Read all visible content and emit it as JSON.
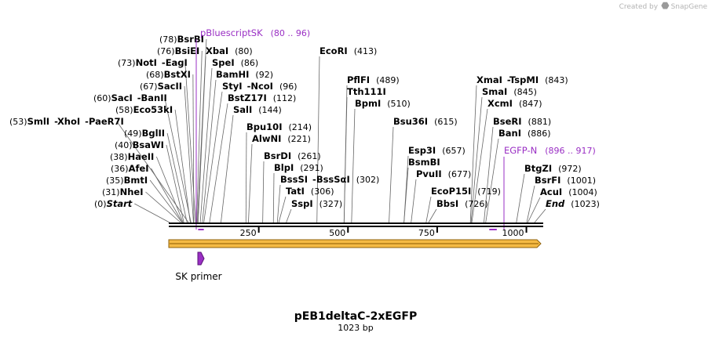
{
  "credit": {
    "prefix": "Created by",
    "brand": "SnapGene"
  },
  "map": {
    "title": "pEB1deltaC-2xEGFP",
    "length_label": "1023 bp",
    "length": 1023,
    "ticks": [
      {
        "bp": 250,
        "label": "250"
      },
      {
        "bp": 500,
        "label": "500"
      },
      {
        "bp": 750,
        "label": "750"
      },
      {
        "bp": 1000,
        "label": "1000"
      }
    ]
  },
  "features": [
    {
      "name": "pBluescriptSK",
      "range": "(80 .. 96)",
      "start": 80,
      "end": 96,
      "color": "#9a2fc4"
    },
    {
      "name": "EGFP-N",
      "range": "(896 .. 917)",
      "start": 896,
      "end": 917,
      "color": "#9a2fc4"
    }
  ],
  "primer": {
    "name": "SK primer",
    "color": "#9a2fc4"
  },
  "orf_bar": {
    "color": "#f5b73a",
    "border": "#8a5a00"
  },
  "sites": [
    {
      "bp": 0,
      "pos": "(0)",
      "name": "Start",
      "italic": true
    },
    {
      "bp": 31,
      "pos": "(31)",
      "name": "NheI"
    },
    {
      "bp": 35,
      "pos": "(35)",
      "name": "BmtI"
    },
    {
      "bp": 36,
      "pos": "(36)",
      "name": "AfeI"
    },
    {
      "bp": 38,
      "pos": "(38)",
      "name": "HaeII"
    },
    {
      "bp": 40,
      "pos": "(40)",
      "name": "BsaWI"
    },
    {
      "bp": 49,
      "pos": "(49)",
      "name": "BglII"
    },
    {
      "bp": 53,
      "pos": "(53)",
      "name": "SmlI",
      "names": [
        "SmlI",
        "XhoI",
        "PaeR7I"
      ]
    },
    {
      "bp": 58,
      "pos": "(58)",
      "name": "Eco53kI"
    },
    {
      "bp": 60,
      "pos": "(60)",
      "name": "SacI",
      "names": [
        "SacI",
        "BanII"
      ]
    },
    {
      "bp": 67,
      "pos": "(67)",
      "name": "SacII"
    },
    {
      "bp": 68,
      "pos": "(68)",
      "name": "BstXI"
    },
    {
      "bp": 73,
      "pos": "(73)",
      "name": "NotI",
      "names": [
        "NotI",
        "EagI"
      ]
    },
    {
      "bp": 76,
      "pos": "(76)",
      "name": "BsiEI"
    },
    {
      "bp": 78,
      "pos": "(78)",
      "name": "BsrBI"
    },
    {
      "bp": 80,
      "pos": "(80)",
      "name": "XbaI"
    },
    {
      "bp": 86,
      "pos": "(86)",
      "name": "SpeI"
    },
    {
      "bp": 92,
      "pos": "(92)",
      "name": "BamHI"
    },
    {
      "bp": 96,
      "pos": "(96)",
      "name": "StyI",
      "names": [
        "StyI",
        "NcoI"
      ]
    },
    {
      "bp": 112,
      "pos": "(112)",
      "name": "BstZ17I"
    },
    {
      "bp": 144,
      "pos": "(144)",
      "name": "SalI"
    },
    {
      "bp": 214,
      "pos": "(214)",
      "name": "Bpu10I"
    },
    {
      "bp": 221,
      "pos": "(221)",
      "name": "AlwNI"
    },
    {
      "bp": 261,
      "pos": "(261)",
      "name": "BsrDI"
    },
    {
      "bp": 291,
      "pos": "(291)",
      "name": "BlpI"
    },
    {
      "bp": 302,
      "pos": "(302)",
      "name": "BssSI",
      "names": [
        "BssSI",
        "BssSαI"
      ]
    },
    {
      "bp": 306,
      "pos": "(306)",
      "name": "TatI"
    },
    {
      "bp": 327,
      "pos": "(327)",
      "name": "SspI"
    },
    {
      "bp": 413,
      "pos": "(413)",
      "name": "EcoRI"
    },
    {
      "bp": 489,
      "pos": "(489)",
      "name": "PflFI"
    },
    {
      "bp": 489,
      "pos": "",
      "name": "Tth111I"
    },
    {
      "bp": 510,
      "pos": "(510)",
      "name": "BpmI"
    },
    {
      "bp": 615,
      "pos": "(615)",
      "name": "Bsu36I"
    },
    {
      "bp": 657,
      "pos": "(657)",
      "name": "Esp3I"
    },
    {
      "bp": 657,
      "pos": "",
      "name": "BsmBI"
    },
    {
      "bp": 677,
      "pos": "(677)",
      "name": "PvuII"
    },
    {
      "bp": 719,
      "pos": "(719)",
      "name": "EcoP15I"
    },
    {
      "bp": 726,
      "pos": "(726)",
      "name": "BbsI"
    },
    {
      "bp": 843,
      "pos": "(843)",
      "name": "XmaI",
      "names": [
        "XmaI",
        "TspMI"
      ]
    },
    {
      "bp": 845,
      "pos": "(845)",
      "name": "SmaI"
    },
    {
      "bp": 847,
      "pos": "(847)",
      "name": "XcmI"
    },
    {
      "bp": 881,
      "pos": "(881)",
      "name": "BseRI"
    },
    {
      "bp": 886,
      "pos": "(886)",
      "name": "BanI"
    },
    {
      "bp": 972,
      "pos": "(972)",
      "name": "BtgZI"
    },
    {
      "bp": 1001,
      "pos": "(1001)",
      "name": "BsrFI"
    },
    {
      "bp": 1004,
      "pos": "(1004)",
      "name": "AcuI"
    },
    {
      "bp": 1023,
      "pos": "(1023)",
      "name": "End",
      "italic": true
    }
  ]
}
